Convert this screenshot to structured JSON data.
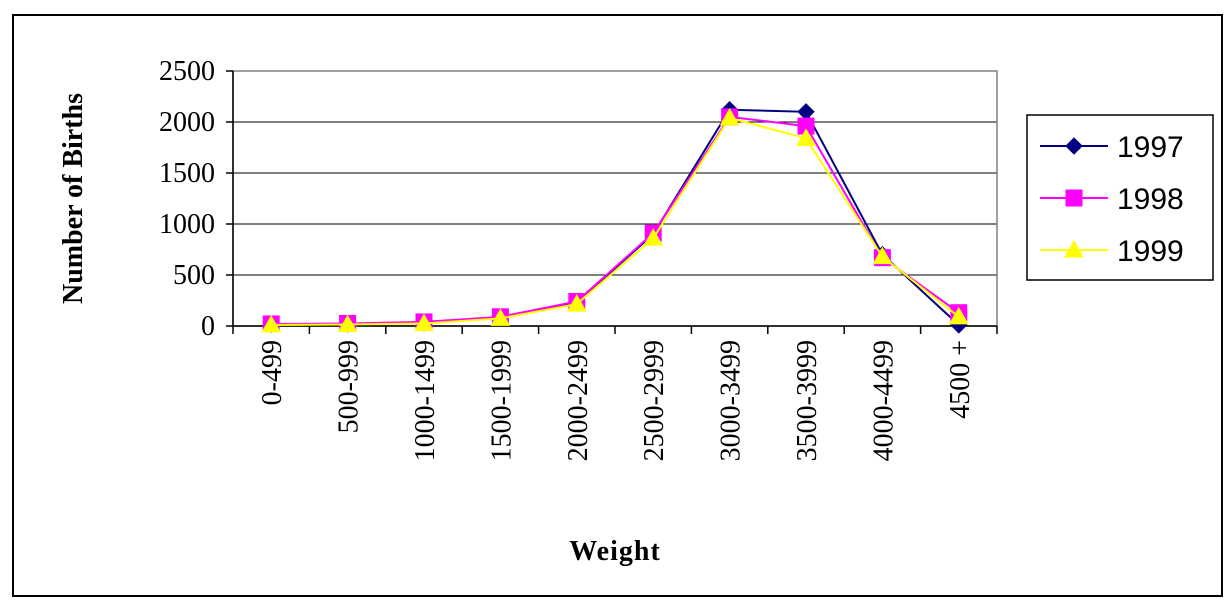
{
  "chart_data": {
    "type": "line",
    "title": "",
    "xlabel": "Weight",
    "ylabel": "Number of Births",
    "categories": [
      "0-499",
      "500-999",
      "1000-1499",
      "1500-1999",
      "2000-2499",
      "2500-2999",
      "3000-3499",
      "3500-3999",
      "4000-4499",
      "4500 +"
    ],
    "ylim": [
      0,
      2500
    ],
    "yticks": [
      "0",
      "500",
      "1000",
      "1500",
      "2000",
      "2500"
    ],
    "grid": true,
    "legend_position": "right",
    "series": [
      {
        "name": "1997",
        "color": "#000080",
        "marker": "diamond",
        "values": [
          15,
          20,
          30,
          80,
          230,
          900,
          2120,
          2100,
          700,
          10
        ]
      },
      {
        "name": "1998",
        "color": "#FF00FF",
        "marker": "square",
        "values": [
          20,
          25,
          40,
          90,
          240,
          910,
          2050,
          1960,
          670,
          130
        ]
      },
      {
        "name": "1999",
        "color": "#FFFF00",
        "marker": "triangle",
        "values": [
          10,
          15,
          25,
          75,
          215,
          860,
          2040,
          1840,
          680,
          90
        ]
      }
    ]
  }
}
